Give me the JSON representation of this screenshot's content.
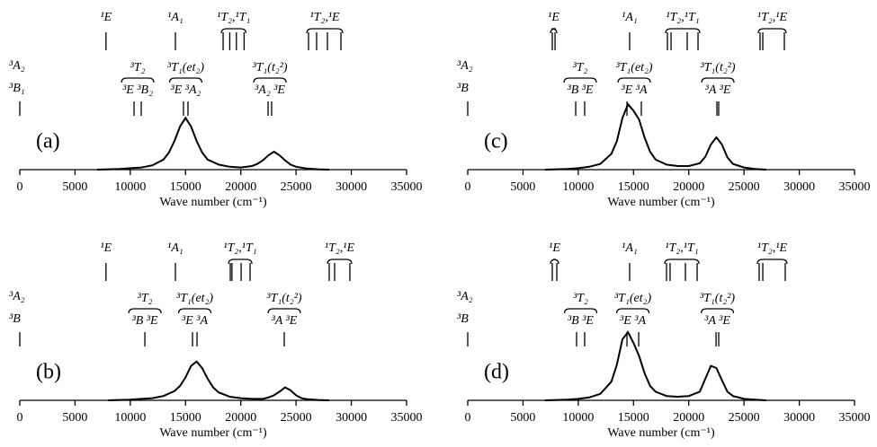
{
  "chart_data": [
    {
      "type": "line",
      "label": "(a)",
      "xlabel": "Wave number (cm⁻¹)",
      "color": "#000000",
      "xlim": [
        0,
        35000
      ],
      "xticks": [
        0,
        5000,
        10000,
        15000,
        20000,
        25000,
        30000,
        35000
      ],
      "x": [
        7000,
        8000,
        9000,
        10000,
        11000,
        12000,
        13000,
        13500,
        14000,
        14500,
        15000,
        15500,
        16000,
        16500,
        17000,
        18000,
        19000,
        20000,
        21000,
        21500,
        22000,
        22500,
        23000,
        23500,
        24000,
        24500,
        25000,
        26000,
        27000,
        28000
      ],
      "values": [
        0,
        0.005,
        0.01,
        0.02,
        0.03,
        0.06,
        0.14,
        0.24,
        0.4,
        0.6,
        0.72,
        0.6,
        0.4,
        0.24,
        0.14,
        0.07,
        0.04,
        0.03,
        0.05,
        0.08,
        0.13,
        0.2,
        0.25,
        0.2,
        0.13,
        0.07,
        0.04,
        0.015,
        0.005,
        0
      ],
      "ground": {
        "labels": [
          "³A₂",
          "³B₁"
        ],
        "position": 0
      },
      "singlet": [
        {
          "label": "¹E",
          "positions": [
            7800
          ]
        },
        {
          "label": "¹A₁",
          "positions": [
            14080
          ]
        },
        {
          "label": "¹T₂,¹T₁",
          "positions": [
            18400,
            19000,
            19600,
            20300
          ]
        },
        {
          "label": "¹T₂,¹E",
          "positions": [
            26130,
            26860,
            27840,
            29060
          ]
        }
      ],
      "triplet": [
        {
          "group": "³T₂",
          "sub": "³E ³B₂",
          "positions": [
            10340,
            10990
          ]
        },
        {
          "group": "³T₁(et₂)",
          "sub": "³E ³A₂",
          "positions": [
            14810,
            15220
          ]
        },
        {
          "group": "³T₁(t₂²)",
          "sub": "³A₂ ³E",
          "positions": [
            22470,
            22790
          ]
        }
      ]
    },
    {
      "type": "line",
      "label": "(b)",
      "xlabel": "Wave number (cm⁻¹)",
      "color": "#000000",
      "xlim": [
        0,
        35000
      ],
      "xticks": [
        0,
        5000,
        10000,
        15000,
        20000,
        25000,
        30000,
        35000
      ],
      "x": [
        8000,
        9000,
        10000,
        11000,
        12000,
        13000,
        14000,
        14500,
        15000,
        15500,
        16000,
        16500,
        17000,
        17500,
        18000,
        19000,
        20000,
        21000,
        22000,
        22500,
        23000,
        23500,
        24000,
        24500,
        25000,
        25500,
        26000,
        27000,
        28000
      ],
      "values": [
        0,
        0.005,
        0.01,
        0.02,
        0.03,
        0.06,
        0.13,
        0.2,
        0.32,
        0.48,
        0.54,
        0.45,
        0.3,
        0.18,
        0.11,
        0.05,
        0.03,
        0.02,
        0.02,
        0.04,
        0.07,
        0.12,
        0.18,
        0.14,
        0.07,
        0.03,
        0.015,
        0.005,
        0
      ],
      "ground": {
        "labels": [
          "³A₂",
          "³B"
        ],
        "position": 0
      },
      "singlet": [
        {
          "label": "¹E",
          "positions": [
            7800
          ]
        },
        {
          "label": "¹A₁",
          "positions": [
            14080
          ]
        },
        {
          "label": "¹T₂,¹T₁",
          "positions": [
            19050,
            19200,
            20030,
            20840
          ]
        },
        {
          "label": "¹T₂,¹E",
          "positions": [
            28000,
            28490,
            29870
          ]
        }
      ],
      "triplet": [
        {
          "group": "³T₂",
          "sub": "³B ³E",
          "positions": [
            11320
          ]
        },
        {
          "group": "³T₁(et₂)",
          "sub": "³E ³A",
          "positions": [
            15630,
            16040
          ]
        },
        {
          "group": "³T₁(t₂²)",
          "sub": "³A ³E",
          "positions": [
            23930
          ]
        }
      ]
    },
    {
      "type": "line",
      "label": "(c)",
      "xlabel": "Wave number (cm⁻¹)",
      "color": "#000000",
      "xlim": [
        0,
        35000
      ],
      "xticks": [
        0,
        5000,
        10000,
        15000,
        20000,
        25000,
        30000,
        35000
      ],
      "x": [
        7000,
        8000,
        9000,
        10000,
        11000,
        12000,
        13000,
        13500,
        14000,
        14500,
        15000,
        15500,
        16000,
        16500,
        17000,
        18000,
        19000,
        20000,
        21000,
        21500,
        22000,
        22500,
        23000,
        23500,
        24000,
        25000,
        26000,
        27000
      ],
      "values": [
        0,
        0.005,
        0.01,
        0.02,
        0.04,
        0.08,
        0.22,
        0.4,
        0.72,
        0.91,
        0.82,
        0.7,
        0.45,
        0.25,
        0.14,
        0.07,
        0.05,
        0.05,
        0.09,
        0.18,
        0.35,
        0.45,
        0.35,
        0.17,
        0.08,
        0.03,
        0.01,
        0
      ],
      "ground": {
        "labels": [
          "³A₂",
          "³B"
        ],
        "position": 0
      },
      "singlet": [
        {
          "label": "¹E",
          "positions": [
            7650,
            7900
          ]
        },
        {
          "label": "¹A₁",
          "positions": [
            14650
          ]
        },
        {
          "label": "¹T₂,¹T₁",
          "positions": [
            18070,
            18400,
            19860,
            20840
          ]
        },
        {
          "label": "¹T₂,¹E",
          "positions": [
            26450,
            26700,
            28650
          ]
        }
      ],
      "triplet": [
        {
          "group": "³T₂",
          "sub": "³B ³E",
          "positions": [
            9770,
            10580
          ]
        },
        {
          "group": "³T₁(et₂)",
          "sub": "³E ³A",
          "positions": [
            14410,
            15710
          ]
        },
        {
          "group": "³T₁(t₂²)",
          "sub": "³A ³E",
          "positions": [
            22550,
            22710
          ]
        }
      ]
    },
    {
      "type": "line",
      "label": "(d)",
      "xlabel": "Wave number (cm⁻¹)",
      "color": "#000000",
      "xlim": [
        0,
        35000
      ],
      "xticks": [
        0,
        5000,
        10000,
        15000,
        20000,
        25000,
        30000,
        35000
      ],
      "x": [
        7000,
        8000,
        9000,
        10000,
        11000,
        12000,
        13000,
        13500,
        14000,
        14500,
        15000,
        15500,
        16000,
        16500,
        17000,
        18000,
        19000,
        20000,
        21000,
        21500,
        22000,
        22500,
        23000,
        23500,
        24000,
        25000,
        26000,
        27000
      ],
      "values": [
        0,
        0.005,
        0.01,
        0.02,
        0.04,
        0.09,
        0.26,
        0.5,
        0.85,
        0.95,
        0.8,
        0.62,
        0.38,
        0.2,
        0.12,
        0.06,
        0.05,
        0.06,
        0.12,
        0.3,
        0.48,
        0.45,
        0.28,
        0.12,
        0.06,
        0.02,
        0.01,
        0
      ],
      "ground": {
        "labels": [
          "³A₂",
          "³B"
        ],
        "position": 0
      },
      "singlet": [
        {
          "label": "¹E",
          "positions": [
            7650,
            8060
          ]
        },
        {
          "label": "¹A₁",
          "positions": [
            14650
          ]
        },
        {
          "label": "¹T₂,¹T₁",
          "positions": [
            17990,
            18310,
            19700,
            20760
          ]
        },
        {
          "label": "¹T₂,¹E",
          "positions": [
            26370,
            26700,
            28730
          ]
        }
      ],
      "triplet": [
        {
          "group": "³T₂",
          "sub": "³B ³E",
          "positions": [
            9850,
            10580
          ]
        },
        {
          "group": "³T₁(et₂)",
          "sub": "³E ³A",
          "positions": [
            14410,
            15470
          ]
        },
        {
          "group": "³T₁(t₂²)",
          "sub": "³A ³E",
          "positions": [
            22470,
            22710
          ]
        }
      ]
    }
  ]
}
